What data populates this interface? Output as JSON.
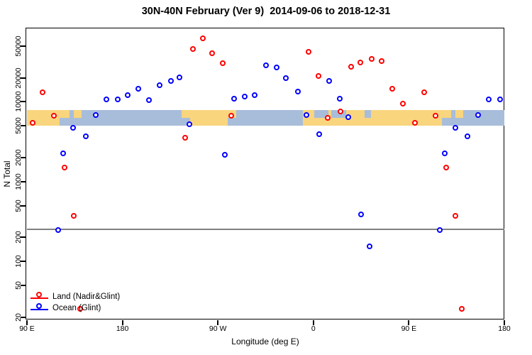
{
  "title": "30N-40N February (Ver 9)  2014-09-06 to 2018-12-31",
  "chart_data": {
    "type": "scatter",
    "title": "30N-40N February (Ver 9)  2014-09-06 to 2018-12-31",
    "xlabel": "Longitude (deg E)",
    "ylabel": "N Total",
    "x_axis": {
      "range_deg": [
        90,
        540
      ],
      "note": "longitude axis wraps: 90E to 180 to 90W to 0 to 90E to 180",
      "ticks": [
        {
          "deg": 90,
          "label": "90 E"
        },
        {
          "deg": 180,
          "label": "180"
        },
        {
          "deg": 270,
          "label": "90 W"
        },
        {
          "deg": 360,
          "label": "0"
        },
        {
          "deg": 450,
          "label": "90 E"
        },
        {
          "deg": 540,
          "label": "180"
        }
      ]
    },
    "y_axis": {
      "scale": "log10",
      "range": [
        18.7,
        83200
      ],
      "ticks": [
        20,
        50,
        100,
        200,
        500,
        1000,
        2000,
        5000,
        10000,
        20000,
        50000
      ]
    },
    "reference_line": {
      "value": 250,
      "color": "#808080"
    },
    "map_band": {
      "value_top": 7900,
      "value_bottom": 5000,
      "land_color": "#F9D57E",
      "ocean_color": "#A8BDDA",
      "segments": [
        {
          "from": 90,
          "to": 121,
          "top": "land",
          "bottom": "land"
        },
        {
          "from": 121,
          "to": 130,
          "top": "land",
          "bottom": "ocean"
        },
        {
          "from": 130,
          "to": 134,
          "top": "ocean",
          "bottom": "ocean"
        },
        {
          "from": 134,
          "to": 141.5,
          "top": "land",
          "bottom": "ocean"
        },
        {
          "from": 141.5,
          "to": 236,
          "top": "ocean",
          "bottom": "ocean"
        },
        {
          "from": 236,
          "to": 244,
          "top": "land",
          "bottom": "ocean"
        },
        {
          "from": 244,
          "to": 279,
          "top": "land",
          "bottom": "land"
        },
        {
          "from": 279,
          "to": 287,
          "top": "land",
          "bottom": "ocean"
        },
        {
          "from": 287,
          "to": 350,
          "top": "ocean",
          "bottom": "ocean"
        },
        {
          "from": 350,
          "to": 361,
          "top": "land",
          "bottom": "land"
        },
        {
          "from": 361,
          "to": 374,
          "top": "ocean",
          "bottom": "land"
        },
        {
          "from": 374,
          "to": 377,
          "top": "land",
          "bottom": "land"
        },
        {
          "from": 377,
          "to": 391,
          "top": "ocean",
          "bottom": "land"
        },
        {
          "from": 391,
          "to": 408,
          "top": "land",
          "bottom": "land"
        },
        {
          "from": 408,
          "to": 414,
          "top": "ocean",
          "bottom": "land"
        },
        {
          "from": 414,
          "to": 481,
          "top": "land",
          "bottom": "land"
        },
        {
          "from": 481,
          "to": 490,
          "top": "land",
          "bottom": "ocean"
        },
        {
          "from": 490,
          "to": 494,
          "top": "ocean",
          "bottom": "ocean"
        },
        {
          "from": 494,
          "to": 501.5,
          "top": "land",
          "bottom": "ocean"
        },
        {
          "from": 501.5,
          "to": 540,
          "top": "ocean",
          "bottom": "ocean"
        }
      ]
    },
    "series": [
      {
        "name": "Land (Nadir&Glint)",
        "color": "#FF0000",
        "points": [
          {
            "x_deg": 96,
            "n": 5450
          },
          {
            "x_deg": 105,
            "n": 12900
          },
          {
            "x_deg": 115.5,
            "n": 6650
          },
          {
            "x_deg": 125.5,
            "n": 1490
          },
          {
            "x_deg": 134.5,
            "n": 365
          },
          {
            "x_deg": 140.5,
            "n": 25
          },
          {
            "x_deg": 239.5,
            "n": 3480
          },
          {
            "x_deg": 246.5,
            "n": 45900
          },
          {
            "x_deg": 256,
            "n": 62400
          },
          {
            "x_deg": 265,
            "n": 40600
          },
          {
            "x_deg": 275,
            "n": 29900
          },
          {
            "x_deg": 283,
            "n": 6650
          },
          {
            "x_deg": 356,
            "n": 42000
          },
          {
            "x_deg": 365,
            "n": 20900
          },
          {
            "x_deg": 374,
            "n": 6210
          },
          {
            "x_deg": 386,
            "n": 7520
          },
          {
            "x_deg": 396,
            "n": 27300
          },
          {
            "x_deg": 404.5,
            "n": 30900
          },
          {
            "x_deg": 415,
            "n": 34200
          },
          {
            "x_deg": 424.5,
            "n": 32400
          },
          {
            "x_deg": 435,
            "n": 14300
          },
          {
            "x_deg": 445,
            "n": 9480
          },
          {
            "x_deg": 456,
            "n": 5450
          },
          {
            "x_deg": 465,
            "n": 12900
          },
          {
            "x_deg": 475.5,
            "n": 6650
          },
          {
            "x_deg": 485.5,
            "n": 1490
          },
          {
            "x_deg": 494.5,
            "n": 365
          },
          {
            "x_deg": 500.5,
            "n": 25
          }
        ]
      },
      {
        "name": "Ocean (Glint)",
        "color": "#0000FF",
        "points": [
          {
            "x_deg": 119.5,
            "n": 247
          },
          {
            "x_deg": 124.5,
            "n": 2250
          },
          {
            "x_deg": 134,
            "n": 4630
          },
          {
            "x_deg": 145.5,
            "n": 3640
          },
          {
            "x_deg": 155.5,
            "n": 6730
          },
          {
            "x_deg": 165.5,
            "n": 10700
          },
          {
            "x_deg": 176,
            "n": 10700
          },
          {
            "x_deg": 185.5,
            "n": 12100
          },
          {
            "x_deg": 195.5,
            "n": 14300
          },
          {
            "x_deg": 205.5,
            "n": 10500
          },
          {
            "x_deg": 215.5,
            "n": 16100
          },
          {
            "x_deg": 226,
            "n": 18200
          },
          {
            "x_deg": 234,
            "n": 20200
          },
          {
            "x_deg": 243.5,
            "n": 5230
          },
          {
            "x_deg": 277,
            "n": 2160
          },
          {
            "x_deg": 285.5,
            "n": 10900
          },
          {
            "x_deg": 295.5,
            "n": 11600
          },
          {
            "x_deg": 305,
            "n": 11900
          },
          {
            "x_deg": 315.5,
            "n": 28100
          },
          {
            "x_deg": 325.5,
            "n": 26900
          },
          {
            "x_deg": 334.5,
            "n": 19500
          },
          {
            "x_deg": 345.5,
            "n": 13400
          },
          {
            "x_deg": 354,
            "n": 6790
          },
          {
            "x_deg": 365.5,
            "n": 3850
          },
          {
            "x_deg": 375,
            "n": 18200
          },
          {
            "x_deg": 385,
            "n": 10900
          },
          {
            "x_deg": 393,
            "n": 6300
          },
          {
            "x_deg": 405,
            "n": 386
          },
          {
            "x_deg": 413,
            "n": 152
          },
          {
            "x_deg": 479.5,
            "n": 247
          },
          {
            "x_deg": 484.5,
            "n": 2250
          },
          {
            "x_deg": 494,
            "n": 4630
          },
          {
            "x_deg": 505.5,
            "n": 3640
          },
          {
            "x_deg": 515.5,
            "n": 6730
          },
          {
            "x_deg": 525.5,
            "n": 10700
          },
          {
            "x_deg": 536,
            "n": 10700
          }
        ]
      }
    ],
    "legend_position": "bottom-left",
    "grid": "off"
  }
}
